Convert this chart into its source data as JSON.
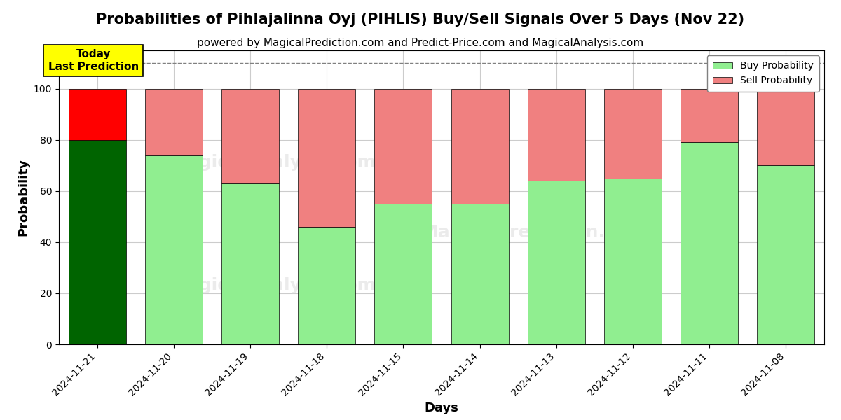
{
  "title": "Probabilities of Pihlajalinna Oyj (PIHLIS) Buy/Sell Signals Over 5 Days (Nov 22)",
  "subtitle": "powered by MagicalPrediction.com and Predict-Price.com and MagicalAnalysis.com",
  "xlabel": "Days",
  "ylabel": "Probability",
  "categories": [
    "2024-11-21",
    "2024-11-20",
    "2024-11-19",
    "2024-11-18",
    "2024-11-15",
    "2024-11-14",
    "2024-11-13",
    "2024-11-12",
    "2024-11-11",
    "2024-11-08"
  ],
  "buy_values": [
    80,
    74,
    63,
    46,
    55,
    55,
    64,
    65,
    79,
    70
  ],
  "sell_values": [
    20,
    26,
    37,
    54,
    45,
    45,
    36,
    35,
    21,
    30
  ],
  "today_buy_color": "#006400",
  "today_sell_color": "#FF0000",
  "regular_buy_color": "#90EE90",
  "regular_sell_color": "#F08080",
  "legend_buy_color": "#90EE90",
  "legend_sell_color": "#F08080",
  "today_label_bg": "#FFFF00",
  "today_label_text": "Today\nLast Prediction",
  "ylim": [
    0,
    115
  ],
  "yticks": [
    0,
    20,
    40,
    60,
    80,
    100
  ],
  "dashed_line_y": 110,
  "background_color": "#ffffff",
  "grid_color": "#cccccc",
  "title_fontsize": 15,
  "subtitle_fontsize": 11,
  "axis_label_fontsize": 13,
  "tick_fontsize": 10
}
